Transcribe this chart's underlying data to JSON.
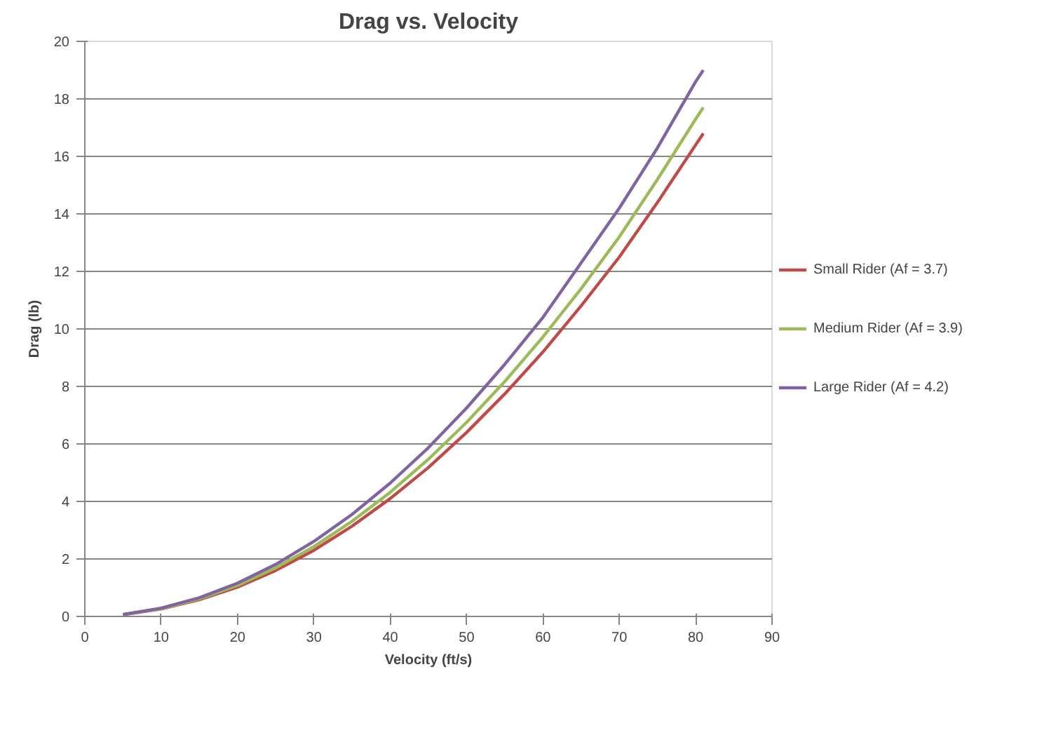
{
  "chart_data": {
    "type": "line",
    "title": "Drag vs. Velocity",
    "xlabel": "Velocity (ft/s)",
    "ylabel": "Drag (lb)",
    "x": [
      5,
      10,
      15,
      20,
      25,
      30,
      35,
      40,
      45,
      50,
      55,
      60,
      65,
      70,
      75,
      80,
      81
    ],
    "series": [
      {
        "name": "Small Rider (Af = 3.7)",
        "color": "#be4b48",
        "values": [
          0.06,
          0.26,
          0.58,
          1.02,
          1.6,
          2.3,
          3.14,
          4.1,
          5.18,
          6.4,
          7.74,
          9.2,
          10.8,
          12.5,
          14.4,
          16.4,
          16.8
        ]
      },
      {
        "name": "Medium Rider (Af = 3.9)",
        "color": "#9bbb59",
        "values": [
          0.07,
          0.27,
          0.61,
          1.08,
          1.69,
          2.43,
          3.31,
          4.32,
          5.47,
          6.75,
          8.17,
          9.72,
          11.4,
          13.2,
          15.2,
          17.3,
          17.7
        ]
      },
      {
        "name": "Large Rider (Af = 4.2)",
        "color": "#8064a2",
        "values": [
          0.07,
          0.29,
          0.65,
          1.16,
          1.81,
          2.61,
          3.55,
          4.64,
          5.87,
          7.25,
          8.77,
          10.4,
          12.3,
          14.2,
          16.3,
          18.6,
          19.0
        ]
      }
    ],
    "xlim": [
      0,
      90
    ],
    "xticks": [
      0,
      10,
      20,
      30,
      40,
      50,
      60,
      70,
      80,
      90
    ],
    "ylim": [
      0,
      20
    ],
    "yticks": [
      0,
      2,
      4,
      6,
      8,
      10,
      12,
      14,
      16,
      18,
      20
    ],
    "grid": "y",
    "legend": "right",
    "marker": "none",
    "line_style": "solid"
  }
}
